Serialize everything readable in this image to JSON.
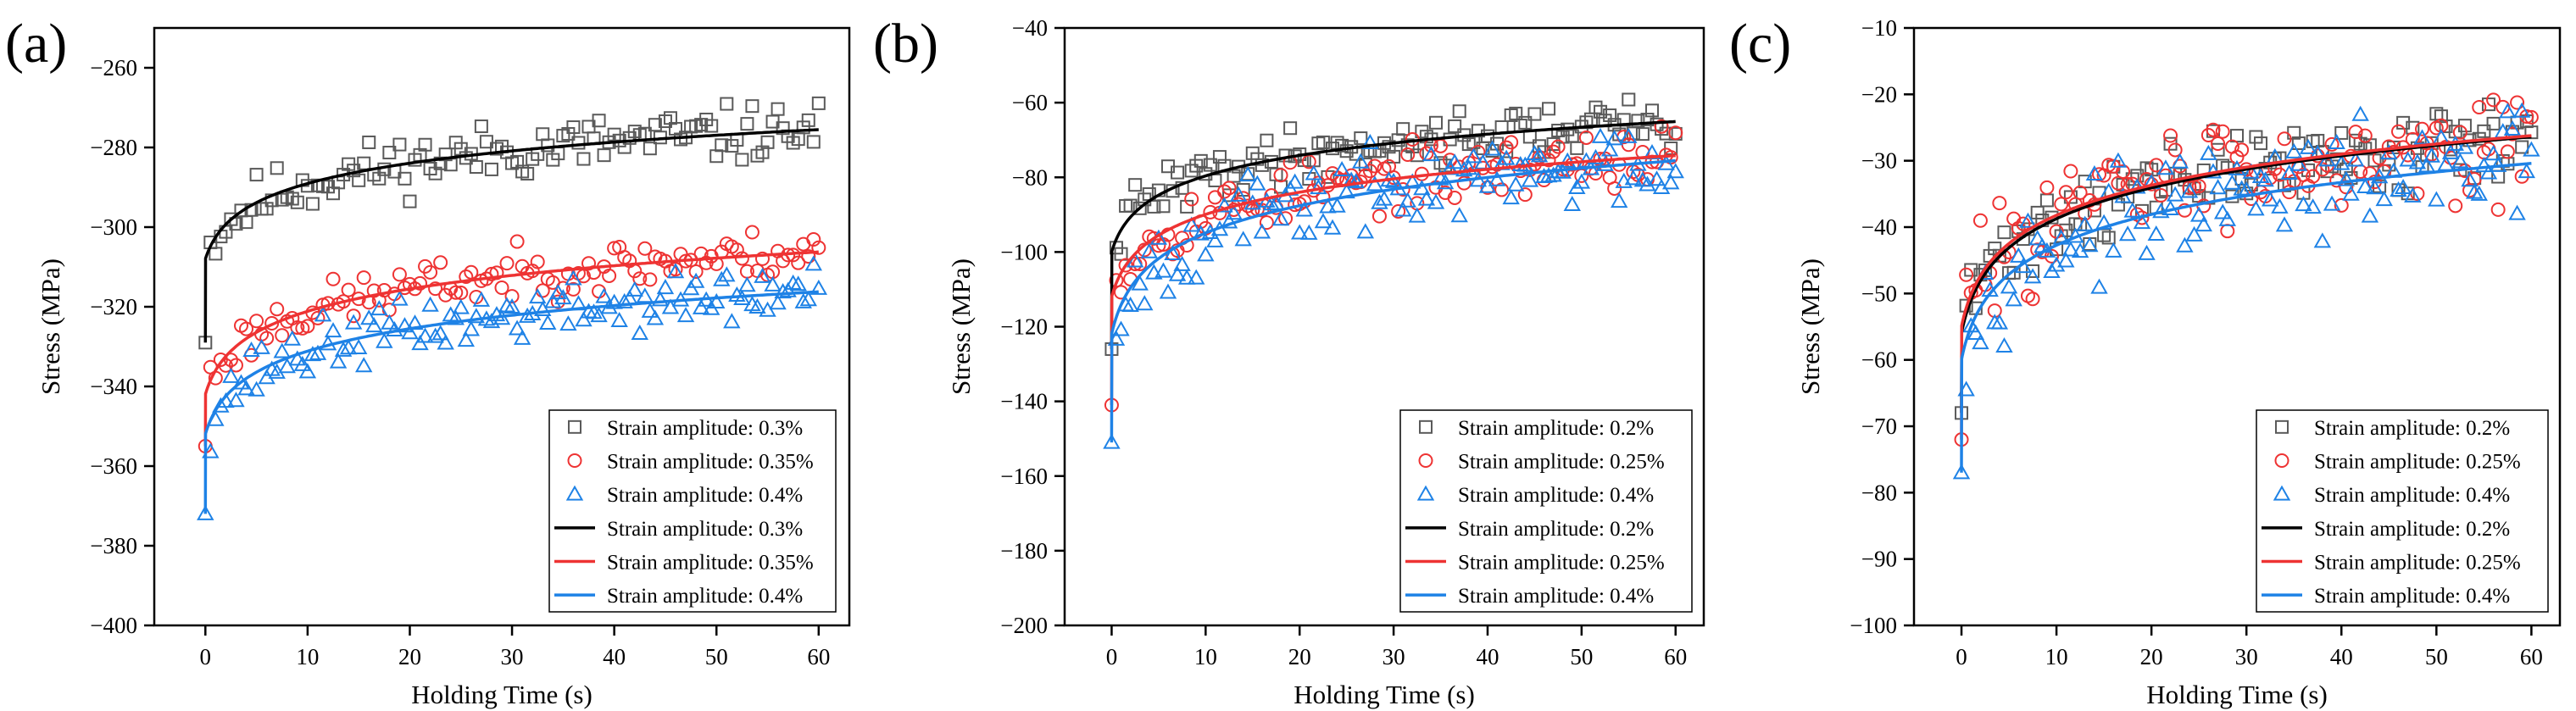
{
  "figure": {
    "panel_labels": [
      "(a)",
      "(b)",
      "(c)"
    ]
  },
  "colors": {
    "gray": "#5a5a5a",
    "red": "#ee3333",
    "blue": "#1e82e6",
    "black": "#000000"
  },
  "chart_data": [
    {
      "type": "scatter",
      "panel": "(a)",
      "xlabel": "Holding Time (s)",
      "ylabel": "Stress (MPa)",
      "xlim": [
        -5,
        63
      ],
      "ylim": [
        -400,
        -250
      ],
      "xticks": [
        0,
        10,
        20,
        30,
        40,
        50,
        60
      ],
      "yticks": [
        -400,
        -380,
        -360,
        -340,
        -320,
        -300,
        -280,
        -260
      ],
      "legend_position": "bottom-right",
      "legend": [
        "Strain amplitude: 0.3%",
        "Strain amplitude: 0.35%",
        "Strain amplitude: 0.4%",
        "Strain amplitude: 0.3%",
        "Strain amplitude: 0.35%",
        "Strain amplitude: 0.4%"
      ],
      "series": [
        {
          "name": "Strain amplitude: 0.3%",
          "marker": "square",
          "color": "#5a5a5a",
          "start": -329,
          "a": -308,
          "b": 7.9,
          "noise": 3.5,
          "seed": 11
        },
        {
          "name": "Strain amplitude: 0.35%",
          "marker": "circle",
          "color": "#ee3333",
          "start": -355,
          "a": -342,
          "b": 8.7,
          "noise": 3,
          "seed": 23
        },
        {
          "name": "Strain amplitude: 0.4%",
          "marker": "triangle",
          "color": "#1e82e6",
          "start": -372,
          "a": -352,
          "b": 8.7,
          "noise": 3.5,
          "seed": 37
        }
      ],
      "fits": [
        {
          "name": "Strain amplitude: 0.3%",
          "color": "#000000",
          "start": -329,
          "a": -308,
          "b": 7.9
        },
        {
          "name": "Strain amplitude: 0.35%",
          "color": "#ee3333",
          "start": -355,
          "a": -342,
          "b": 8.7
        },
        {
          "name": "Strain amplitude: 0.4%",
          "color": "#1e82e6",
          "start": -372,
          "a": -352,
          "b": 8.7
        }
      ]
    },
    {
      "type": "scatter",
      "panel": "(b)",
      "xlabel": "Holding Time (s)",
      "ylabel": "Stress (MPa)",
      "xlim": [
        -5,
        63
      ],
      "ylim": [
        -200,
        -40
      ],
      "xticks": [
        0,
        10,
        20,
        30,
        40,
        50,
        60
      ],
      "yticks": [
        -200,
        -180,
        -160,
        -140,
        -120,
        -100,
        -80,
        -60,
        -40
      ],
      "legend_position": "bottom-right",
      "legend": [
        "Strain amplitude: 0.2%",
        "Strain amplitude: 0.25%",
        "Strain amplitude: 0.4%",
        "Strain amplitude: 0.2%",
        "Strain amplitude: 0.25%",
        "Strain amplitude: 0.4%"
      ],
      "series": [
        {
          "name": "Strain amplitude: 0.2%",
          "marker": "square",
          "color": "#5a5a5a",
          "start": -126,
          "a": -100,
          "b": 8.5,
          "noise": 3.5,
          "seed": 41
        },
        {
          "name": "Strain amplitude: 0.25%",
          "marker": "circle",
          "color": "#ee3333",
          "start": -141,
          "a": -112,
          "b": 9.2,
          "noise": 4,
          "seed": 53
        },
        {
          "name": "Strain amplitude: 0.4%",
          "marker": "triangle",
          "color": "#1e82e6",
          "start": -151,
          "a": -122,
          "b": 11.3,
          "noise": 5,
          "seed": 67
        }
      ],
      "fits": [
        {
          "name": "Strain amplitude: 0.2%",
          "color": "#000000",
          "start": -126,
          "a": -100,
          "b": 8.5
        },
        {
          "name": "Strain amplitude: 0.25%",
          "color": "#ee3333",
          "start": -141,
          "a": -112,
          "b": 9.2
        },
        {
          "name": "Strain amplitude: 0.4%",
          "color": "#1e82e6",
          "start": -151,
          "a": -122,
          "b": 11.3
        }
      ]
    },
    {
      "type": "scatter",
      "panel": "(c)",
      "xlabel": "Holding Time (s)",
      "ylabel": "Stress (MPa)",
      "xlim": [
        -5,
        63
      ],
      "ylim": [
        -100,
        -10
      ],
      "xticks": [
        0,
        10,
        20,
        30,
        40,
        50,
        60
      ],
      "yticks": [
        -100,
        -90,
        -80,
        -70,
        -60,
        -50,
        -40,
        -30,
        -20,
        -10
      ],
      "legend_position": "bottom-right",
      "legend": [
        "Strain amplitude: 0.2%",
        "Strain amplitude: 0.25%",
        "Strain amplitude: 0.4%",
        "Strain amplitude: 0.2%",
        "Strain amplitude: 0.25%",
        "Strain amplitude: 0.4%"
      ],
      "series": [
        {
          "name": "Strain amplitude: 0.2%",
          "marker": "square",
          "color": "#5a5a5a",
          "start": -68,
          "a": -56,
          "b": 7.2,
          "noise": 3,
          "seed": 71
        },
        {
          "name": "Strain amplitude: 0.25%",
          "marker": "circle",
          "color": "#ee3333",
          "start": -72,
          "a": -55,
          "b": 7.0,
          "noise": 4,
          "seed": 83
        },
        {
          "name": "Strain amplitude: 0.4%",
          "marker": "triangle",
          "color": "#1e82e6",
          "start": -77,
          "a": -60,
          "b": 7.2,
          "noise": 3.5,
          "seed": 97
        }
      ],
      "fits": [
        {
          "name": "Strain amplitude: 0.2%",
          "color": "#000000",
          "start": -68,
          "a": -56,
          "b": 7.2
        },
        {
          "name": "Strain amplitude: 0.25%",
          "color": "#ee3333",
          "start": -72,
          "a": -55,
          "b": 7.0
        },
        {
          "name": "Strain amplitude: 0.4%",
          "color": "#1e82e6",
          "start": -77,
          "a": -60,
          "b": 7.2
        }
      ]
    }
  ]
}
